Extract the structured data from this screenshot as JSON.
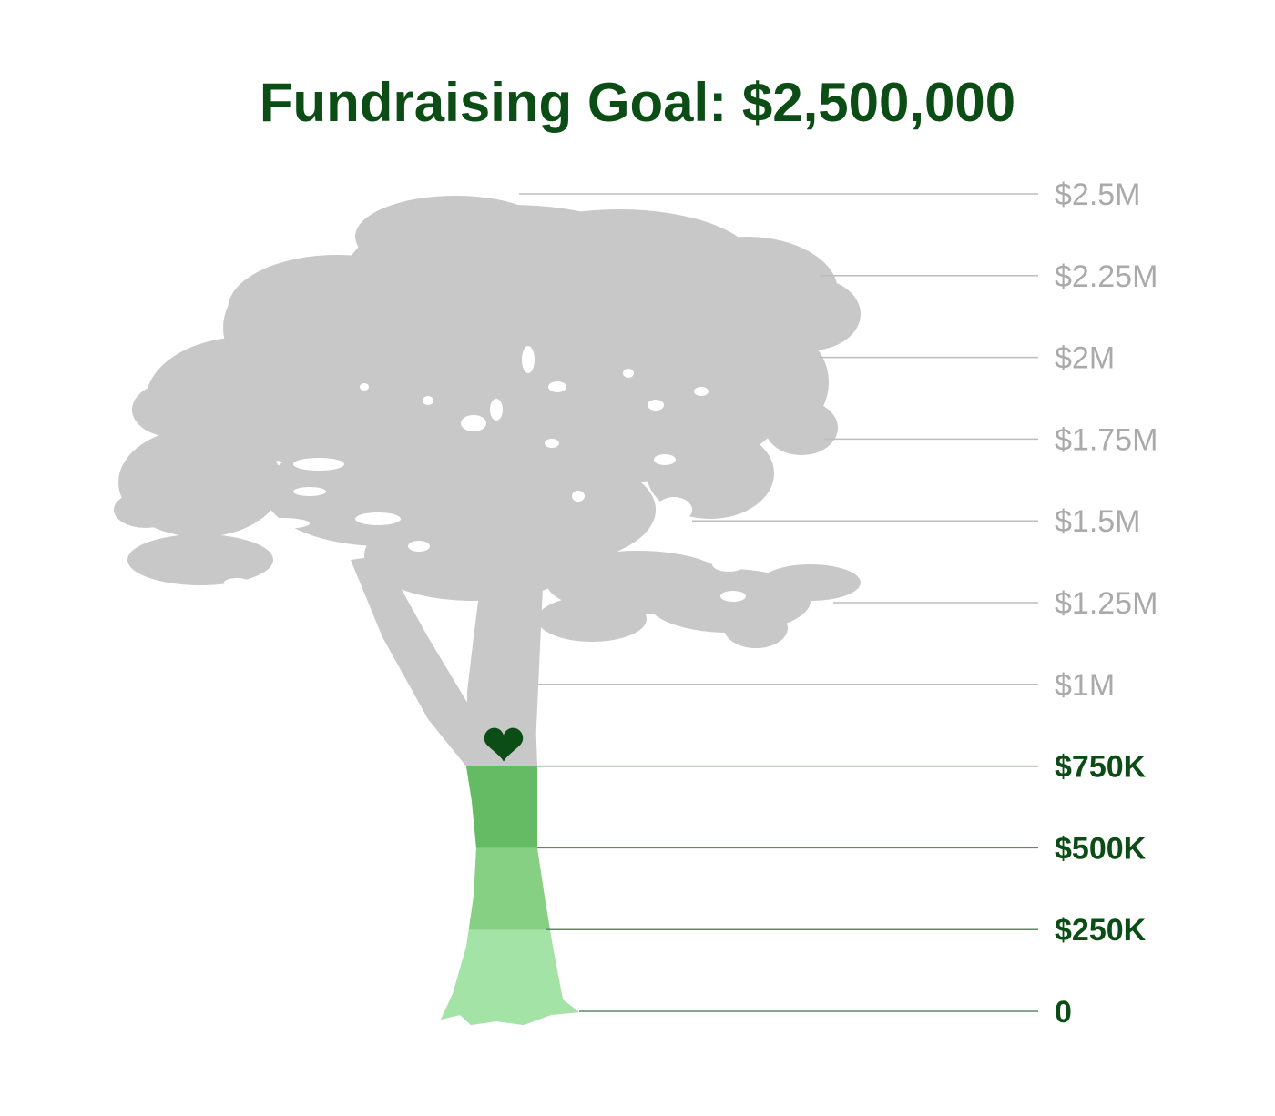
{
  "title": "Fundraising Goal: $2,500,000",
  "chart_data": {
    "type": "bar",
    "title": "Fundraising Goal: $2,500,000",
    "goal": 2500000,
    "raised": 750000,
    "ylim": [
      0,
      2500000
    ],
    "ticks": [
      {
        "value": 0,
        "label": "0"
      },
      {
        "value": 250000,
        "label": "$250K"
      },
      {
        "value": 500000,
        "label": "$500K"
      },
      {
        "value": 750000,
        "label": "$750K"
      },
      {
        "value": 1000000,
        "label": "$1M"
      },
      {
        "value": 1250000,
        "label": "$1.25M"
      },
      {
        "value": 1500000,
        "label": "$1.5M"
      },
      {
        "value": 1750000,
        "label": "$1.75M"
      },
      {
        "value": 2000000,
        "label": "$2M"
      },
      {
        "value": 2250000,
        "label": "$2.25M"
      },
      {
        "value": 2500000,
        "label": "$2.5M"
      }
    ],
    "bands": [
      {
        "from": 0,
        "to": 250000,
        "color": "#a3e3a6"
      },
      {
        "from": 250000,
        "to": 500000,
        "color": "#86d084"
      },
      {
        "from": 500000,
        "to": 750000,
        "color": "#64bb64"
      }
    ],
    "colors": {
      "unfilled": "#c8c8c8",
      "reached_text": "#0b4d14",
      "unreached_text": "#aaaaaa",
      "heart": "#0b4d14"
    },
    "marker_icon": "heart-icon"
  }
}
